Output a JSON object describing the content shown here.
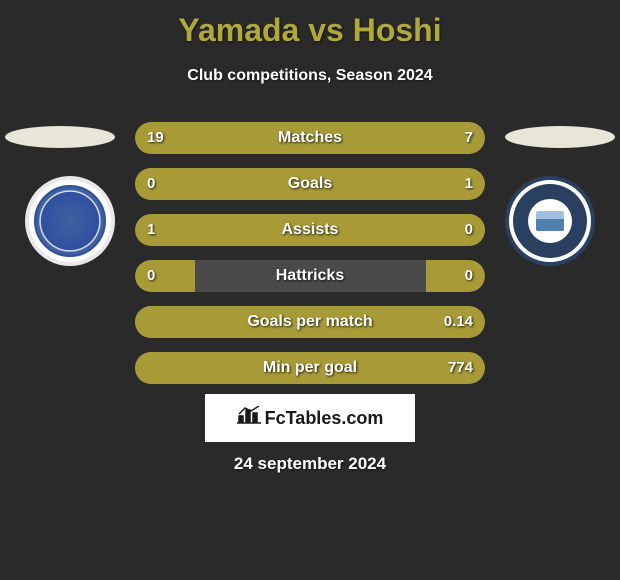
{
  "title": "Yamada vs Hoshi",
  "subtitle": "Club competitions, Season 2024",
  "date": "24 september 2024",
  "watermark": "FcTables.com",
  "colors": {
    "background": "#2a2a2a",
    "title_color": "#b0a838",
    "text_color": "#ffffff",
    "bar_bg": "#4a4a4a",
    "bar_fill": "#a89a36",
    "oval_color": "#e8e6d8"
  },
  "stats": [
    {
      "label": "Matches",
      "left_value": "19",
      "right_value": "7",
      "left_pct": 73,
      "right_pct": 27
    },
    {
      "label": "Goals",
      "left_value": "0",
      "right_value": "1",
      "left_pct": 17,
      "right_pct": 100
    },
    {
      "label": "Assists",
      "left_value": "1",
      "right_value": "0",
      "left_pct": 100,
      "right_pct": 17
    },
    {
      "label": "Hattricks",
      "left_value": "0",
      "right_value": "0",
      "left_pct": 17,
      "right_pct": 17
    },
    {
      "label": "Goals per match",
      "left_value": "",
      "right_value": "0.14",
      "left_pct": 35,
      "right_pct": 100
    },
    {
      "label": "Min per goal",
      "left_value": "",
      "right_value": "774",
      "left_pct": 40,
      "right_pct": 100
    }
  ]
}
